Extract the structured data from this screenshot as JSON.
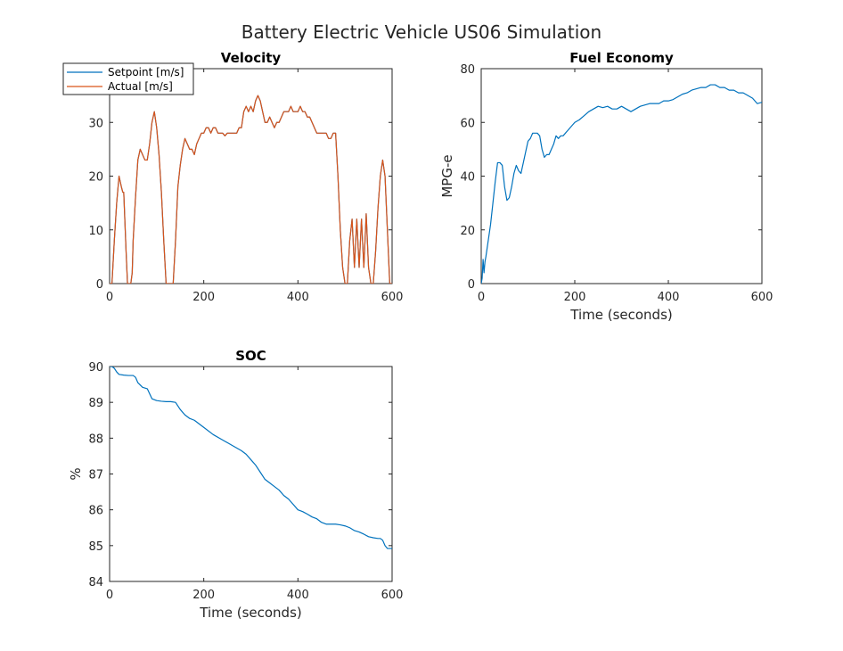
{
  "figure_title": "Battery Electric Vehicle US06 Simulation",
  "colors": {
    "setpoint": "#0072BD",
    "actual": "#D95319",
    "soc": "#0072BD",
    "fuel": "#0072BD",
    "axes": "#262626"
  },
  "chart_data": [
    {
      "id": "velocity",
      "type": "line",
      "title": "Velocity",
      "xlabel": "",
      "ylabel": "",
      "xlim": [
        0,
        600
      ],
      "ylim": [
        0,
        40
      ],
      "xticks": [
        0,
        200,
        400,
        600
      ],
      "yticks": [
        0,
        10,
        20,
        30
      ],
      "legend": {
        "placement": "top-left",
        "entries": [
          "Setpoint [m/s]",
          "Actual [m/s]"
        ]
      },
      "series": [
        {
          "name": "Setpoint [m/s]",
          "color": "#0072BD",
          "x": [
            0,
            5,
            10,
            15,
            20,
            25,
            28,
            30,
            35,
            38,
            40,
            45,
            48,
            50,
            55,
            60,
            65,
            70,
            75,
            80,
            85,
            90,
            95,
            100,
            105,
            110,
            115,
            120,
            125,
            130,
            135,
            140,
            145,
            150,
            155,
            160,
            165,
            170,
            175,
            180,
            185,
            190,
            195,
            200,
            205,
            210,
            215,
            220,
            225,
            230,
            235,
            240,
            245,
            250,
            255,
            260,
            265,
            270,
            275,
            280,
            285,
            290,
            295,
            300,
            305,
            310,
            315,
            320,
            325,
            330,
            335,
            340,
            345,
            350,
            355,
            360,
            365,
            370,
            375,
            380,
            385,
            390,
            395,
            400,
            405,
            410,
            415,
            420,
            425,
            430,
            435,
            440,
            445,
            450,
            455,
            460,
            465,
            470,
            475,
            480,
            485,
            490,
            495,
            500,
            505,
            510,
            515,
            520,
            525,
            530,
            535,
            540,
            545,
            550,
            555,
            560,
            565,
            570,
            575,
            580,
            585,
            590,
            595,
            600
          ],
          "values": [
            0,
            0,
            8,
            15,
            20,
            18,
            17,
            17,
            6,
            0,
            0,
            0,
            2,
            8,
            16,
            23,
            25,
            24,
            23,
            23,
            26,
            30,
            32,
            29,
            24,
            17,
            8,
            0,
            0,
            0,
            0,
            8,
            18,
            22,
            25,
            27,
            26,
            25,
            25,
            24,
            26,
            27,
            28,
            28,
            29,
            29,
            28,
            29,
            29,
            28,
            28,
            28,
            27.5,
            28,
            28,
            28,
            28,
            28,
            29,
            29,
            32,
            33,
            32,
            33,
            32,
            34,
            35,
            34,
            32,
            30,
            30,
            31,
            30,
            29,
            30,
            30,
            31,
            32,
            32,
            32,
            33,
            32,
            32,
            32,
            33,
            32,
            32,
            31,
            31,
            30,
            29,
            28,
            28,
            28,
            28,
            28,
            27,
            27,
            28,
            28,
            20,
            10,
            3,
            0,
            0,
            8,
            12,
            3,
            12,
            3,
            12,
            3,
            13,
            3,
            0,
            0,
            6,
            14,
            20,
            23,
            20,
            10,
            0,
            0
          ]
        },
        {
          "name": "Actual [m/s]",
          "color": "#D95319",
          "x": [
            0,
            5,
            10,
            15,
            20,
            25,
            28,
            30,
            35,
            38,
            40,
            45,
            48,
            50,
            55,
            60,
            65,
            70,
            75,
            80,
            85,
            90,
            95,
            100,
            105,
            110,
            115,
            120,
            125,
            130,
            135,
            140,
            145,
            150,
            155,
            160,
            165,
            170,
            175,
            180,
            185,
            190,
            195,
            200,
            205,
            210,
            215,
            220,
            225,
            230,
            235,
            240,
            245,
            250,
            255,
            260,
            265,
            270,
            275,
            280,
            285,
            290,
            295,
            300,
            305,
            310,
            315,
            320,
            325,
            330,
            335,
            340,
            345,
            350,
            355,
            360,
            365,
            370,
            375,
            380,
            385,
            390,
            395,
            400,
            405,
            410,
            415,
            420,
            425,
            430,
            435,
            440,
            445,
            450,
            455,
            460,
            465,
            470,
            475,
            480,
            485,
            490,
            495,
            500,
            505,
            510,
            515,
            520,
            525,
            530,
            535,
            540,
            545,
            550,
            555,
            560,
            565,
            570,
            575,
            580,
            585,
            590,
            595,
            600
          ],
          "values": [
            0,
            0,
            8,
            15,
            20,
            18,
            17,
            17,
            6,
            0,
            0,
            0,
            2,
            8,
            16,
            23,
            25,
            24,
            23,
            23,
            26,
            30,
            32,
            29,
            24,
            17,
            8,
            0,
            0,
            0,
            0,
            8,
            18,
            22,
            25,
            27,
            26,
            25,
            25,
            24,
            26,
            27,
            28,
            28,
            29,
            29,
            28,
            29,
            29,
            28,
            28,
            28,
            27.5,
            28,
            28,
            28,
            28,
            28,
            29,
            29,
            32,
            33,
            32,
            33,
            32,
            34,
            35,
            34,
            32,
            30,
            30,
            31,
            30,
            29,
            30,
            30,
            31,
            32,
            32,
            32,
            33,
            32,
            32,
            32,
            33,
            32,
            32,
            31,
            31,
            30,
            29,
            28,
            28,
            28,
            28,
            28,
            27,
            27,
            28,
            28,
            20,
            10,
            3,
            0,
            0,
            8,
            12,
            3,
            12,
            3,
            12,
            3,
            13,
            3,
            0,
            0,
            6,
            14,
            20,
            23,
            20,
            10,
            0,
            0
          ]
        }
      ]
    },
    {
      "id": "fuel",
      "type": "line",
      "title": "Fuel Economy",
      "xlabel": "Time (seconds)",
      "ylabel": "MPG-e",
      "xlim": [
        0,
        600
      ],
      "ylim": [
        0,
        80
      ],
      "xticks": [
        0,
        200,
        400,
        600
      ],
      "yticks": [
        0,
        20,
        40,
        60,
        80
      ],
      "series": [
        {
          "name": "",
          "color": "#0072BD",
          "x": [
            0,
            2,
            4,
            6,
            8,
            10,
            15,
            20,
            25,
            30,
            35,
            40,
            45,
            50,
            55,
            60,
            65,
            70,
            75,
            80,
            85,
            90,
            95,
            100,
            105,
            110,
            115,
            120,
            125,
            130,
            135,
            140,
            145,
            150,
            155,
            160,
            165,
            170,
            175,
            180,
            190,
            200,
            210,
            220,
            230,
            240,
            250,
            260,
            270,
            280,
            290,
            300,
            310,
            320,
            330,
            340,
            350,
            360,
            370,
            380,
            390,
            400,
            410,
            420,
            430,
            440,
            450,
            460,
            470,
            480,
            490,
            500,
            510,
            520,
            530,
            540,
            550,
            560,
            570,
            580,
            590,
            600
          ],
          "values": [
            0,
            2,
            9,
            4,
            8,
            10,
            16,
            22,
            30,
            38,
            45,
            45,
            44,
            36,
            31,
            32,
            36,
            41,
            44,
            42,
            41,
            45,
            49,
            53,
            54,
            56,
            56,
            56,
            55,
            50,
            47,
            48,
            48,
            50,
            52,
            55,
            54,
            55,
            55,
            56,
            58,
            60,
            61,
            62.5,
            64,
            65,
            66,
            65.5,
            66,
            65,
            65,
            66,
            65,
            64,
            65,
            66,
            66.5,
            67,
            67,
            67,
            68,
            68,
            68.5,
            69.5,
            70.5,
            71,
            72,
            72.5,
            73,
            73,
            74,
            74,
            73,
            73,
            72,
            72,
            71,
            71,
            70,
            69,
            67,
            67.5
          ]
        }
      ]
    },
    {
      "id": "soc",
      "type": "line",
      "title": "SOC",
      "xlabel": "Time (seconds)",
      "ylabel": "%",
      "xlim": [
        0,
        600
      ],
      "ylim": [
        84,
        90
      ],
      "xticks": [
        0,
        200,
        400,
        600
      ],
      "yticks": [
        84,
        85,
        86,
        87,
        88,
        89,
        90
      ],
      "series": [
        {
          "name": "",
          "color": "#0072BD",
          "x": [
            0,
            5,
            10,
            15,
            20,
            30,
            40,
            50,
            55,
            60,
            70,
            80,
            90,
            100,
            110,
            120,
            130,
            140,
            150,
            160,
            170,
            180,
            200,
            220,
            240,
            260,
            280,
            290,
            300,
            310,
            320,
            330,
            340,
            350,
            360,
            370,
            380,
            390,
            400,
            410,
            420,
            430,
            440,
            450,
            460,
            470,
            480,
            490,
            500,
            510,
            520,
            530,
            540,
            550,
            560,
            570,
            575,
            580,
            585,
            590,
            600
          ],
          "values": [
            90,
            90,
            89.95,
            89.85,
            89.78,
            89.76,
            89.75,
            89.75,
            89.7,
            89.55,
            89.42,
            89.38,
            89.1,
            89.05,
            89.03,
            89.02,
            89.02,
            89.0,
            88.8,
            88.65,
            88.55,
            88.5,
            88.3,
            88.1,
            87.95,
            87.8,
            87.65,
            87.55,
            87.4,
            87.25,
            87.05,
            86.85,
            86.75,
            86.65,
            86.55,
            86.4,
            86.3,
            86.15,
            86.0,
            85.95,
            85.88,
            85.8,
            85.75,
            85.65,
            85.6,
            85.6,
            85.6,
            85.58,
            85.55,
            85.5,
            85.42,
            85.38,
            85.32,
            85.25,
            85.22,
            85.2,
            85.2,
            85.15,
            85.0,
            84.92,
            84.92
          ]
        }
      ]
    }
  ]
}
